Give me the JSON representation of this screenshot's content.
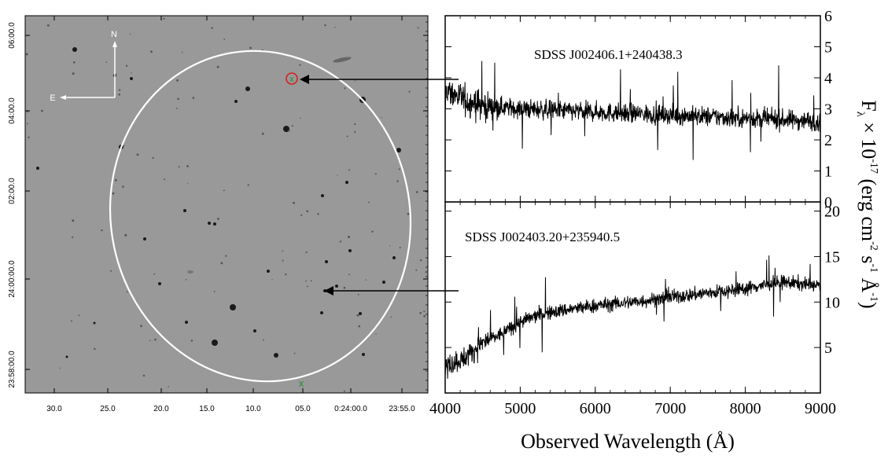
{
  "sky_image": {
    "compass": {
      "north": "N",
      "east": "E"
    },
    "ra_ticks": [
      "30.0",
      "25.0",
      "20.0",
      "15.0",
      "10.0",
      "05.0",
      "0:24:00.0",
      "23:55.0"
    ],
    "dec_ticks": [
      "06:00.0",
      "04:00.0",
      "02:00.0",
      "24:00:00.0",
      "23:58:00.0"
    ],
    "ellipse_color": "#ffffff",
    "circle_marker_color": "#d42020",
    "x_marker_color": "#2e8b2e",
    "background_gray": "#999999"
  },
  "axes": {
    "xlabel": "Observed Wavelength (Å)",
    "ylabel_parts": [
      "F",
      "λ",
      " × 10",
      "-17",
      " (erg cm",
      "-2",
      " s",
      "-1",
      " Å",
      "-1",
      ")"
    ]
  },
  "chart_data": [
    {
      "type": "line",
      "label": "SDSS J002406.1+240438.3",
      "xlim": [
        4000,
        9000
      ],
      "ylim": [
        0,
        6
      ],
      "xticks": [
        4000,
        5000,
        6000,
        7000,
        8000,
        9000
      ],
      "yticks": [
        0,
        1,
        2,
        3,
        4,
        5,
        6
      ],
      "x": [
        4000,
        4250,
        4500,
        5000,
        5500,
        6000,
        6500,
        7000,
        7500,
        8000,
        8500,
        9000
      ],
      "y": [
        3.6,
        3.3,
        3.1,
        3.0,
        2.95,
        2.9,
        2.85,
        2.8,
        2.75,
        2.7,
        2.65,
        2.6
      ]
    },
    {
      "type": "line",
      "label": "SDSS J002403.20+235940.5",
      "xlim": [
        4000,
        9000
      ],
      "ylim": [
        0,
        21
      ],
      "xticks": [
        4000,
        5000,
        6000,
        7000,
        8000,
        9000
      ],
      "yticks": [
        5,
        10,
        15,
        20
      ],
      "x": [
        4000,
        4250,
        4500,
        4750,
        5000,
        5250,
        5500,
        6000,
        6500,
        7000,
        7500,
        8000,
        8500,
        9000
      ],
      "y": [
        3.0,
        3.8,
        5.5,
        6.5,
        7.8,
        8.6,
        9.0,
        9.6,
        10.0,
        10.5,
        11.0,
        11.5,
        12.2,
        11.8
      ]
    }
  ]
}
